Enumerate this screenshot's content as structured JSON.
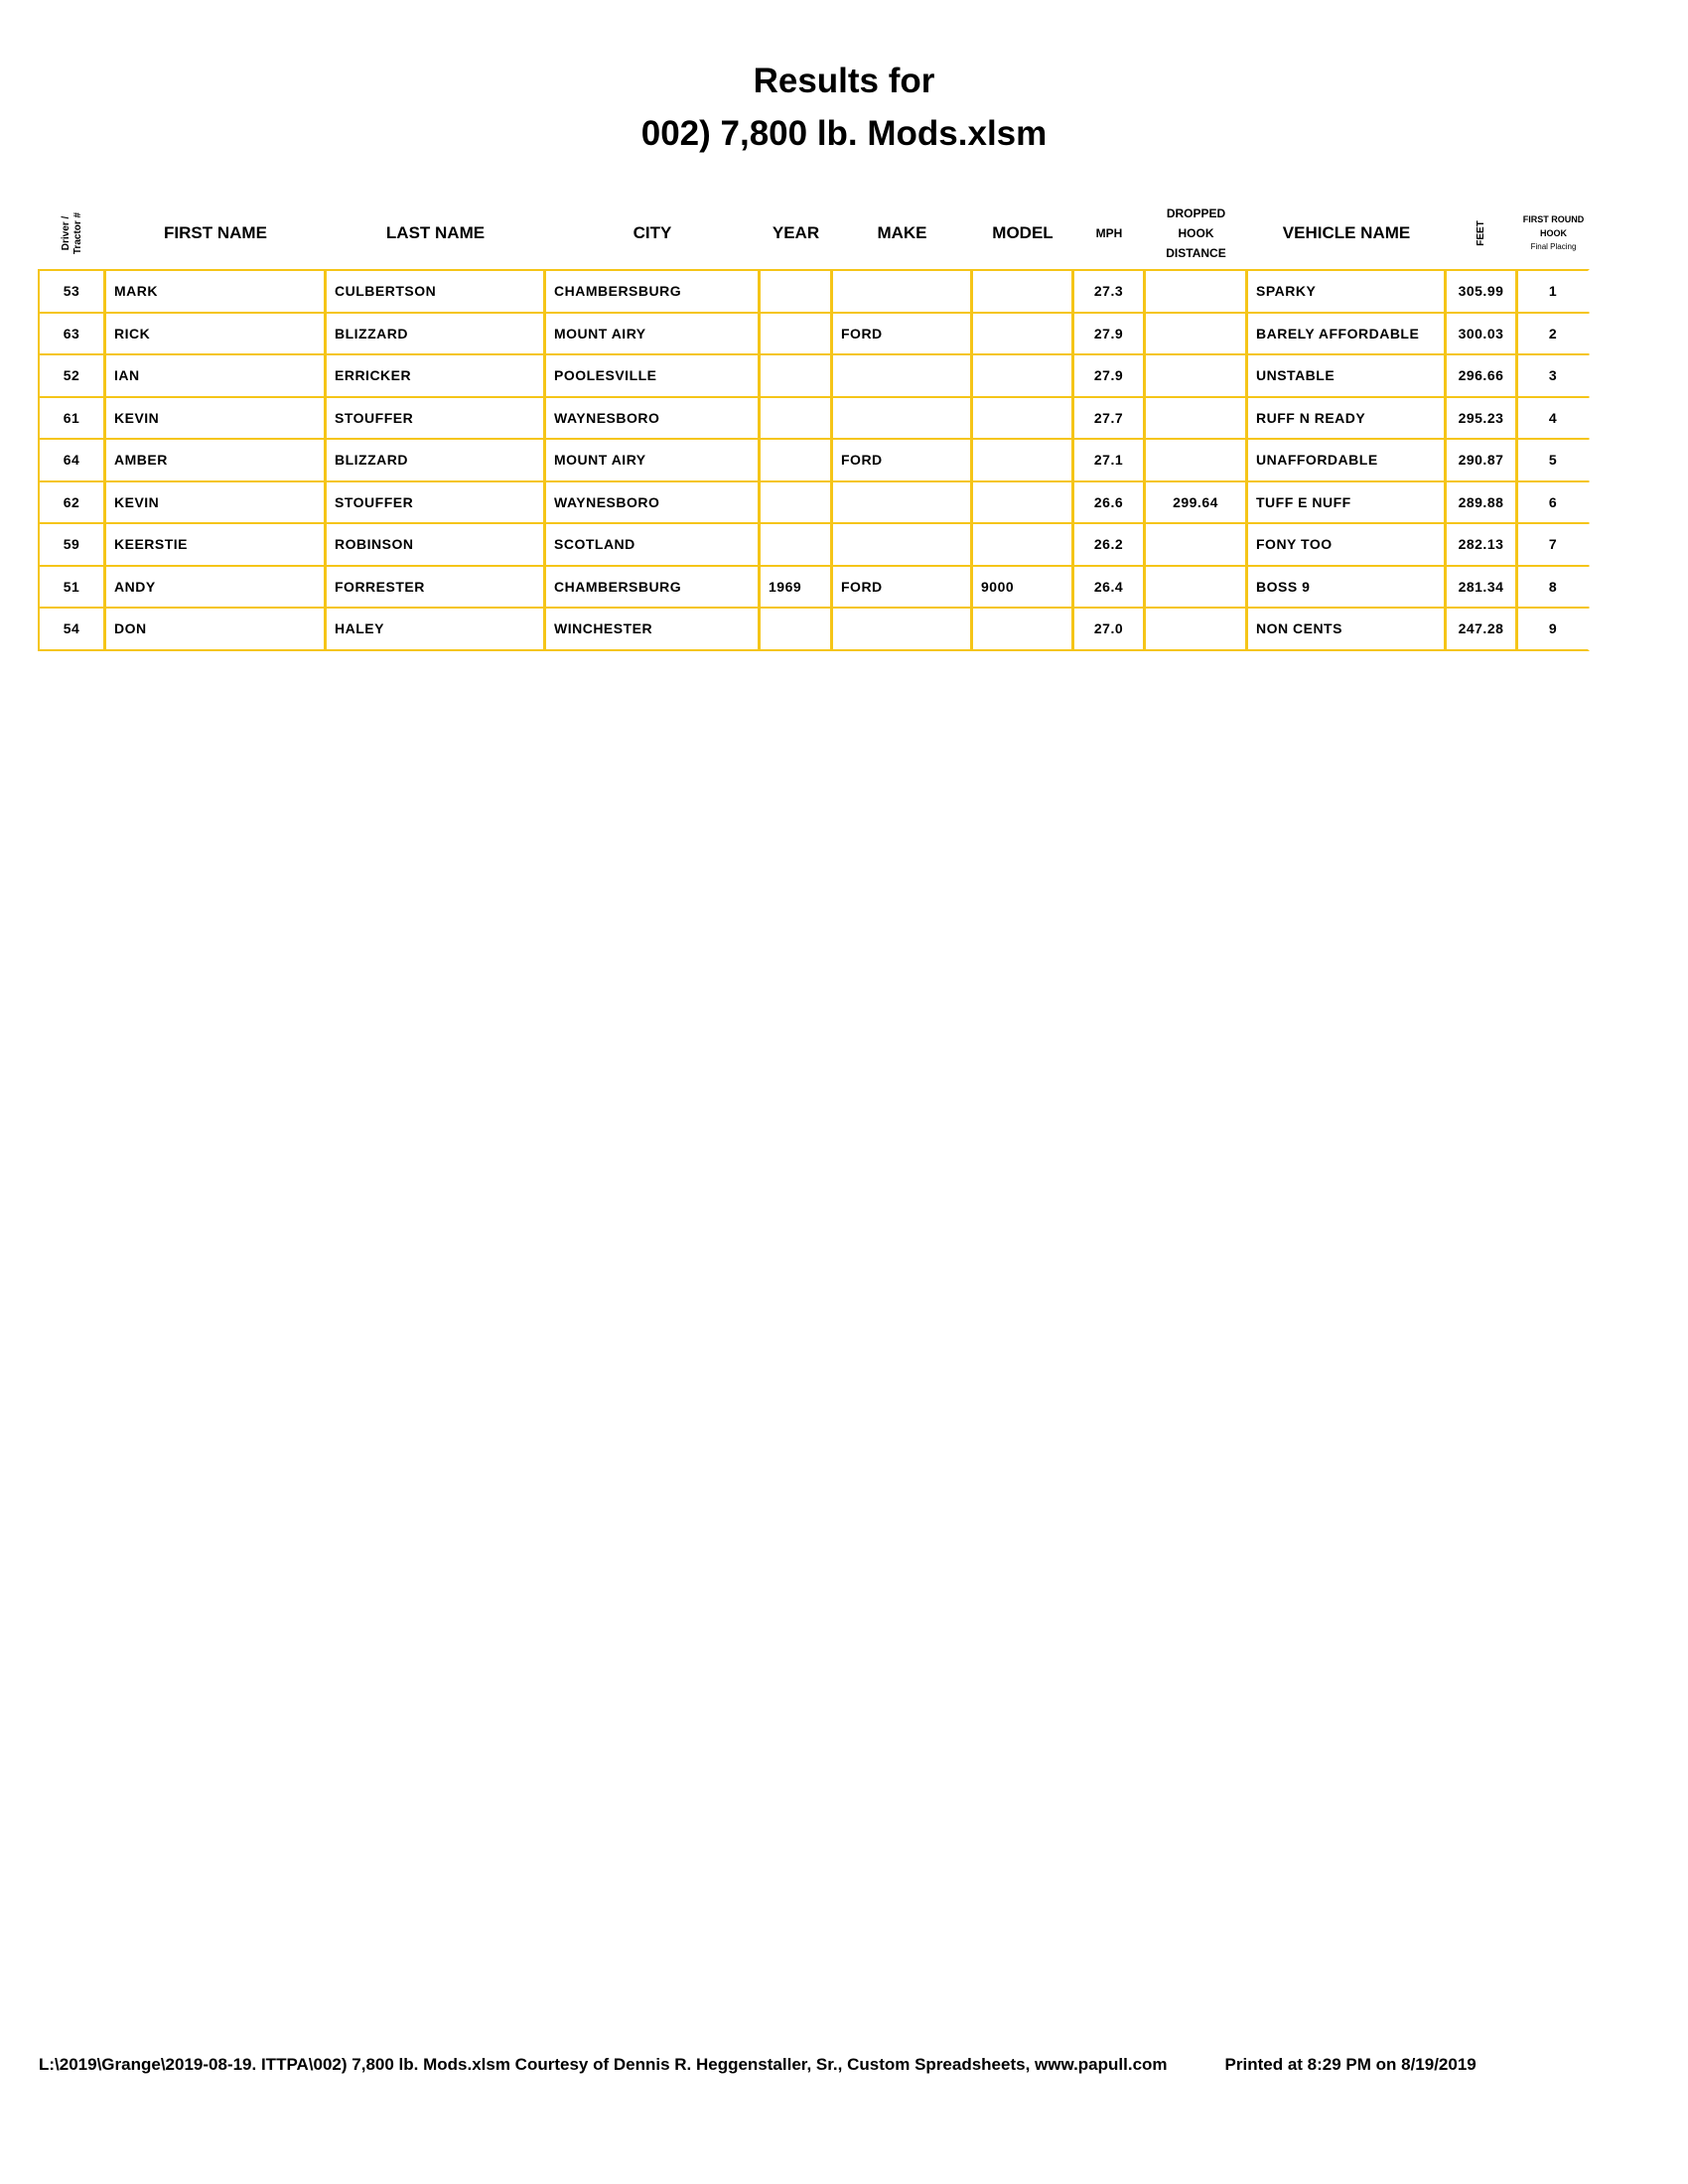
{
  "header": {
    "title": "Results for",
    "subtitle": "002) 7,800 lb. Mods.xlsm"
  },
  "table": {
    "columns": [
      "Driver / Tractor #",
      "FIRST NAME",
      "LAST NAME",
      "CITY",
      "YEAR",
      "MAKE",
      "MODEL",
      "MPH",
      "DROPPED HOOK DISTANCE",
      "VEHICLE NAME",
      "FEET",
      {
        "label": "FIRST ROUND HOOK",
        "sub": "Final Placing"
      }
    ],
    "rows": [
      [
        "53",
        "MARK",
        "CULBERTSON",
        "CHAMBERSBURG",
        null,
        null,
        null,
        "27.3",
        null,
        "SPARKY",
        "305.99",
        "1"
      ],
      [
        "63",
        "RICK",
        "BLIZZARD",
        "MOUNT AIRY",
        null,
        "FORD",
        null,
        "27.9",
        null,
        "BARELY AFFORDABLE",
        "300.03",
        "2"
      ],
      [
        "52",
        "IAN",
        "ERRICKER",
        "POOLESVILLE",
        null,
        null,
        null,
        "27.9",
        null,
        "UNSTABLE",
        "296.66",
        "3"
      ],
      [
        "61",
        "KEVIN",
        "STOUFFER",
        "WAYNESBORO",
        null,
        null,
        null,
        "27.7",
        null,
        "RUFF N READY",
        "295.23",
        "4"
      ],
      [
        "64",
        "AMBER",
        "BLIZZARD",
        "MOUNT AIRY",
        null,
        "FORD",
        null,
        "27.1",
        null,
        "UNAFFORDABLE",
        "290.87",
        "5"
      ],
      [
        "62",
        "KEVIN",
        "STOUFFER",
        "WAYNESBORO",
        null,
        null,
        null,
        "26.6",
        "299.64",
        "TUFF E NUFF",
        "289.88",
        "6"
      ],
      [
        "59",
        "KEERSTIE",
        "ROBINSON",
        "SCOTLAND",
        null,
        null,
        null,
        "26.2",
        null,
        "FONY TOO",
        "282.13",
        "7"
      ],
      [
        "51",
        "ANDY",
        "FORRESTER",
        "CHAMBERSBURG",
        "1969",
        "FORD",
        "9000",
        "26.4",
        null,
        "BOSS 9",
        "281.34",
        "8"
      ],
      [
        "54",
        "DON",
        "HALEY",
        "WINCHESTER",
        null,
        null,
        null,
        "27.0",
        null,
        "NON CENTS",
        "247.28",
        "9"
      ]
    ]
  },
  "footer": {
    "path": "L:\\2019\\Grange\\2019-08-19. ITTPA\\002) 7,800 lb. Mods.xlsm  Courtesy of Dennis R. Heggenstaller, Sr., Custom Spreadsheets, www.papull.com",
    "printed": "Printed at 8:29 PM on 8/19/2019"
  }
}
